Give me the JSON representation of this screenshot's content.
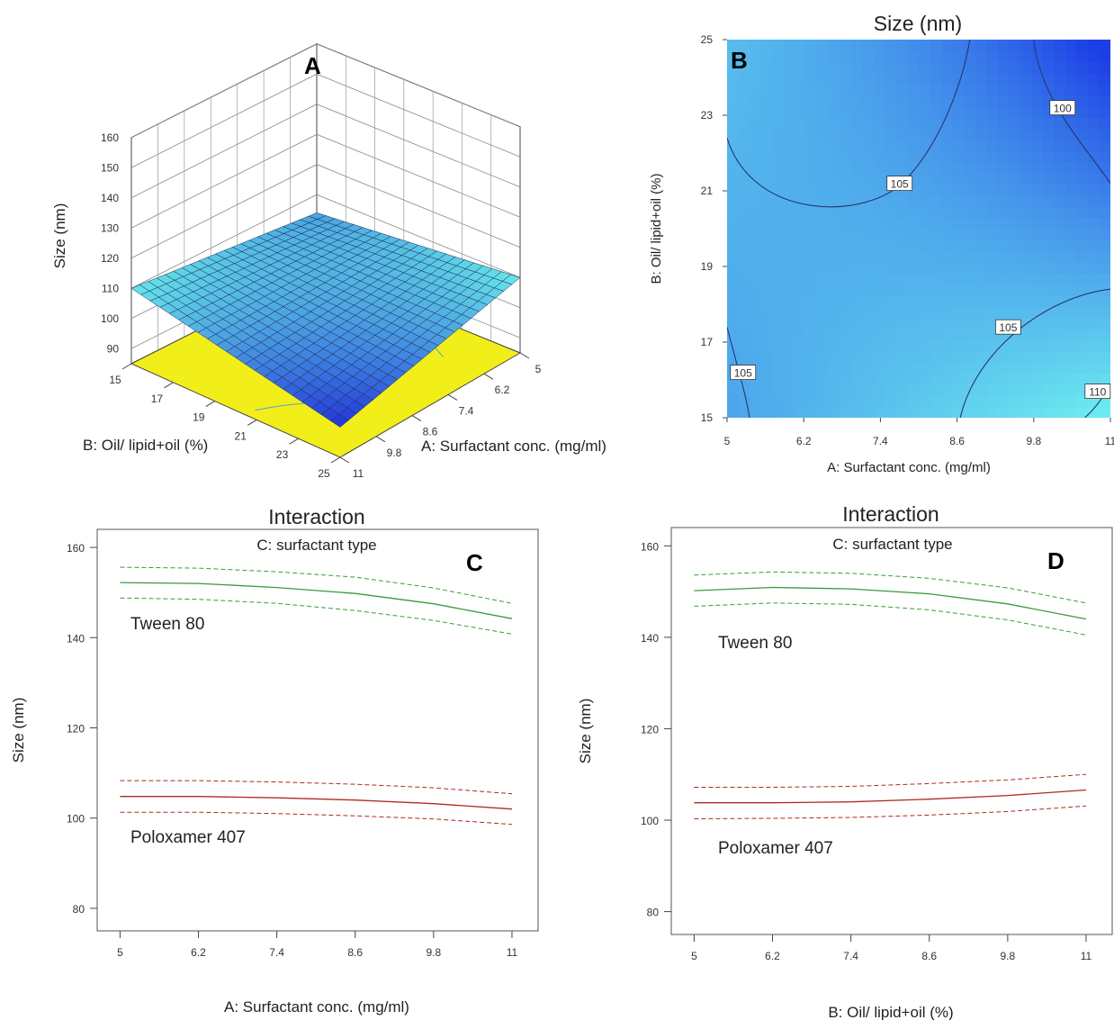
{
  "chart_data": [
    {
      "panel": "A",
      "type": "surface3d",
      "title": "",
      "xlabel": "A: Surfactant conc. (mg/ml)",
      "ylabel": "B: Oil/ lipid+oil (%)",
      "zlabel": "Size (nm)",
      "x_ticks": [
        "5",
        "6.2",
        "7.4",
        "8.6",
        "9.8",
        "11"
      ],
      "y_ticks": [
        "15",
        "17",
        "19",
        "21",
        "23",
        "25"
      ],
      "z_ticks": [
        "90",
        "100",
        "110",
        "120",
        "130",
        "140",
        "150",
        "160"
      ],
      "xlim": [
        5,
        11
      ],
      "ylim": [
        15,
        25
      ],
      "zlim": [
        85,
        160
      ],
      "corner_values": {
        "x5_y15": 104,
        "x11_y15": 110,
        "x5_y25": 110,
        "x11_y25": 95
      },
      "floor_color": "#f2ee1a",
      "surface_colors": [
        "#2233d8",
        "#66e8e8"
      ]
    },
    {
      "panel": "B",
      "type": "contour",
      "title": "Size (nm)",
      "xlabel": "A: Surfactant conc. (mg/ml)",
      "ylabel": "B: Oil/ lipid+oil (%)",
      "x_ticks": [
        "5",
        "6.2",
        "7.4",
        "8.6",
        "9.8",
        "11"
      ],
      "y_ticks": [
        "15",
        "17",
        "19",
        "21",
        "23",
        "25"
      ],
      "xlim": [
        5,
        11
      ],
      "ylim": [
        15,
        25
      ],
      "contour_labels": [
        "100",
        "105",
        "105",
        "105",
        "110"
      ],
      "color_low": "#1d3fe6",
      "color_high": "#6ff0f0"
    },
    {
      "panel": "C",
      "type": "line",
      "title": "Interaction",
      "subtitle": "C: surfactant type",
      "xlabel": "A: Surfactant conc. (mg/ml)",
      "ylabel": "Size (nm)",
      "x_ticks": [
        "5",
        "6.2",
        "7.4",
        "8.6",
        "9.8",
        "11"
      ],
      "y_ticks": [
        "80",
        "100",
        "120",
        "140",
        "160"
      ],
      "xlim": [
        4.65,
        11.4
      ],
      "ylim": [
        75,
        164
      ],
      "x": [
        5,
        6.2,
        7.4,
        8.6,
        9.8,
        11
      ],
      "series": [
        {
          "name": "Tween 80",
          "color": "#3a9a3a",
          "values": [
            152.2,
            152.0,
            151.1,
            149.8,
            147.5,
            144.2
          ],
          "lower": [
            148.8,
            148.5,
            147.6,
            146.0,
            143.8,
            140.8
          ],
          "upper": [
            155.6,
            155.4,
            154.6,
            153.4,
            151.0,
            147.6
          ]
        },
        {
          "name": "Poloxamer 407",
          "color": "#b02a20",
          "values": [
            104.8,
            104.8,
            104.5,
            104.0,
            103.2,
            102.0
          ],
          "lower": [
            101.3,
            101.3,
            101.0,
            100.5,
            99.8,
            98.6
          ],
          "upper": [
            108.3,
            108.3,
            108.0,
            107.5,
            106.7,
            105.4
          ]
        }
      ]
    },
    {
      "panel": "D",
      "type": "line",
      "title": "Interaction",
      "subtitle": "C: surfactant type",
      "xlabel": "B: Oil/ lipid+oil (%)",
      "ylabel": "Size (nm)",
      "x_ticks": [
        "5",
        "6.2",
        "7.4",
        "8.6",
        "9.8",
        "11"
      ],
      "y_ticks": [
        "80",
        "100",
        "120",
        "140",
        "160"
      ],
      "xlim": [
        4.65,
        11.4
      ],
      "ylim": [
        75,
        164
      ],
      "x": [
        5,
        6.2,
        7.4,
        8.6,
        9.8,
        11
      ],
      "series": [
        {
          "name": "Tween 80",
          "color": "#3a9a3a",
          "values": [
            150.2,
            150.9,
            150.6,
            149.5,
            147.3,
            144.0
          ],
          "lower": [
            146.8,
            147.5,
            147.2,
            146.0,
            143.8,
            140.5
          ],
          "upper": [
            153.6,
            154.3,
            154.0,
            152.9,
            150.8,
            147.5
          ]
        },
        {
          "name": "Poloxamer 407",
          "color": "#b02a20",
          "values": [
            103.8,
            103.8,
            104.0,
            104.6,
            105.4,
            106.6
          ],
          "lower": [
            100.3,
            100.4,
            100.6,
            101.1,
            101.9,
            103.1
          ],
          "upper": [
            107.2,
            107.2,
            107.4,
            108.0,
            108.8,
            110.0
          ]
        }
      ]
    }
  ]
}
